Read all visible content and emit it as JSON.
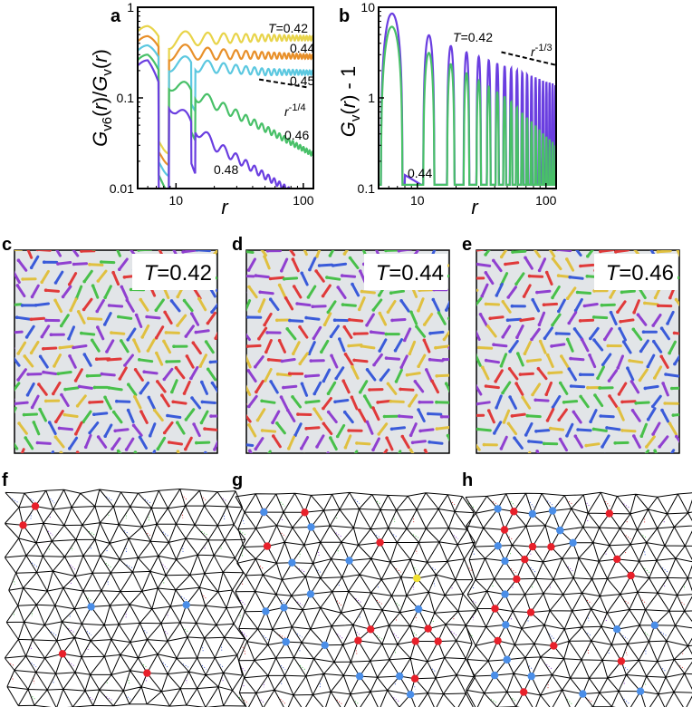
{
  "panel_labels": [
    "a",
    "b",
    "c",
    "d",
    "e",
    "f",
    "g",
    "h"
  ],
  "chart_data": [
    {
      "id": "a",
      "type": "line",
      "log_x": true,
      "log_y": true,
      "xlabel": "r",
      "ylabel": "G_v6(r)/G_v(r)",
      "xlim": [
        5,
        120
      ],
      "ylim": [
        0.01,
        1
      ],
      "x_ticks": [
        10,
        100
      ],
      "x_tick_labels": [
        "10",
        "100"
      ],
      "y_ticks": [
        0.01,
        0.1,
        1
      ],
      "y_tick_labels": [
        "0.01",
        "0.1",
        "1"
      ],
      "series": [
        {
          "name": "T=0.42",
          "color": "#e8d44a",
          "x": [
            6,
            8,
            10,
            20,
            50,
            120
          ],
          "y": [
            0.62,
            0.55,
            0.55,
            0.52,
            0.5,
            0.48
          ]
        },
        {
          "name": "0.44",
          "color": "#e8902a",
          "x": [
            6,
            8,
            10,
            20,
            50,
            120
          ],
          "y": [
            0.48,
            0.42,
            0.4,
            0.35,
            0.32,
            0.3
          ]
        },
        {
          "name": "0.45",
          "color": "#5cc8e0",
          "x": [
            6,
            8,
            10,
            20,
            50,
            120
          ],
          "y": [
            0.38,
            0.32,
            0.3,
            0.25,
            0.21,
            0.2
          ]
        },
        {
          "name": "0.46",
          "color": "#48c068",
          "x": [
            6,
            8,
            10,
            20,
            50,
            120
          ],
          "y": [
            0.3,
            0.22,
            0.17,
            0.1,
            0.05,
            0.025
          ]
        },
        {
          "name": "0.48",
          "color": "#6a3ee0",
          "x": [
            6,
            8,
            10,
            20,
            50,
            120
          ],
          "y": [
            0.26,
            0.15,
            0.09,
            0.035,
            0.015,
            0.007
          ]
        }
      ],
      "reference_line": {
        "label_base": "r",
        "label_exp": "-1/4",
        "x": [
          45,
          110
        ],
        "y": [
          0.16,
          0.13
        ]
      },
      "t_label_prefix": "T",
      "t_label_value": "=0.42"
    },
    {
      "id": "b",
      "type": "line",
      "log_x": true,
      "log_y": true,
      "xlabel": "r",
      "ylabel": "G_v(r) - 1",
      "xlim": [
        5,
        120
      ],
      "ylim": [
        0.1,
        10
      ],
      "x_ticks": [
        10,
        100
      ],
      "x_tick_labels": [
        "10",
        "100"
      ],
      "y_ticks": [
        0.1,
        1,
        10
      ],
      "y_tick_labels": [
        "0.1",
        "1",
        "10"
      ],
      "series": [
        {
          "name": "T=0.42",
          "color": "#6a3ee0",
          "x": [
            6,
            12,
            20,
            50,
            120
          ],
          "y": [
            9,
            5,
            3.5,
            2.2,
            1.4
          ]
        },
        {
          "name": "0.44",
          "color": "#48c068",
          "x": [
            6,
            12,
            20,
            50,
            120
          ],
          "y": [
            6.5,
            3.2,
            2.2,
            1.0,
            0.3
          ]
        }
      ],
      "reference_line": {
        "label_base": "r",
        "label_exp": "-1/3",
        "x": [
          45,
          120
        ],
        "y": [
          3.2,
          2.3
        ]
      },
      "t_label_prefix": "T",
      "t_label_value": "=0.42"
    }
  ],
  "snapshots": [
    {
      "id": "c",
      "label_prefix": "T",
      "label_value": "=0.42"
    },
    {
      "id": "d",
      "label_prefix": "T",
      "label_value": "=0.44"
    },
    {
      "id": "e",
      "label_prefix": "T",
      "label_value": "=0.46"
    }
  ],
  "colors": {
    "snapshot_bg": "#e2e5e8",
    "chain": [
      "#3a5bd9",
      "#e03a3a",
      "#48c04a",
      "#9040d0",
      "#e0c040"
    ],
    "defect_red": "#e8202a",
    "defect_blue": "#4a8ee8",
    "defect_yellow": "#f0e030"
  }
}
